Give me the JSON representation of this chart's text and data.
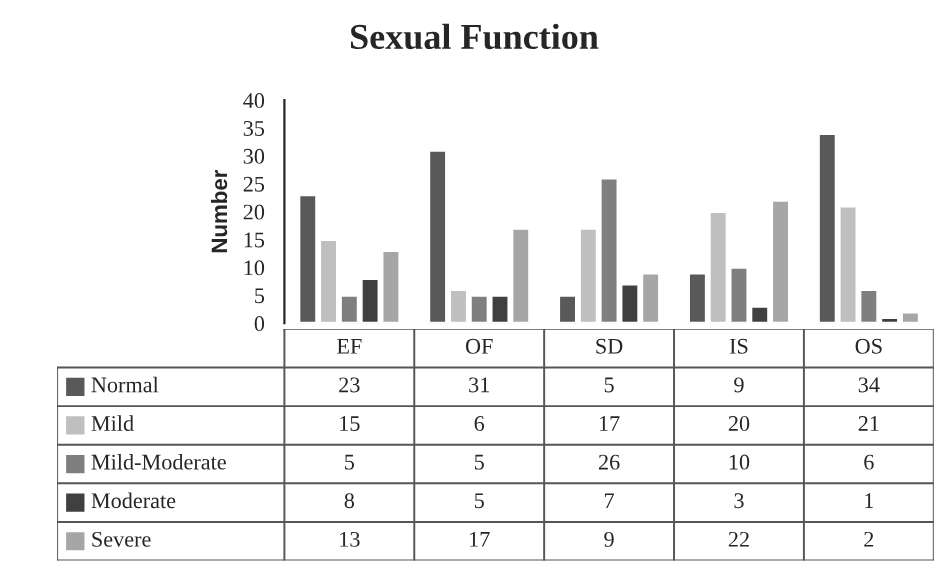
{
  "chart_data": {
    "type": "bar",
    "title": "Sexual Function",
    "ylabel": "Number",
    "categories": [
      "EF",
      "OF",
      "SD",
      "IS",
      "OS"
    ],
    "series": [
      {
        "name": "Normal",
        "color": "#595959",
        "values": [
          23,
          31,
          5,
          9,
          34
        ]
      },
      {
        "name": "Mild",
        "color": "#bfbfbf",
        "values": [
          15,
          6,
          17,
          20,
          21
        ]
      },
      {
        "name": "Mild-Moderate",
        "color": "#7f7f7f",
        "values": [
          5,
          5,
          26,
          10,
          6
        ]
      },
      {
        "name": "Moderate",
        "color": "#404040",
        "values": [
          8,
          5,
          7,
          3,
          1
        ]
      },
      {
        "name": "Severe",
        "color": "#a6a6a6",
        "values": [
          13,
          17,
          9,
          22,
          2
        ]
      }
    ],
    "ylim": [
      0,
      40
    ],
    "yticks": [
      0,
      5,
      10,
      15,
      20,
      25,
      30,
      35,
      40
    ],
    "grid": false,
    "data_labels": true,
    "legend": "bottom"
  }
}
